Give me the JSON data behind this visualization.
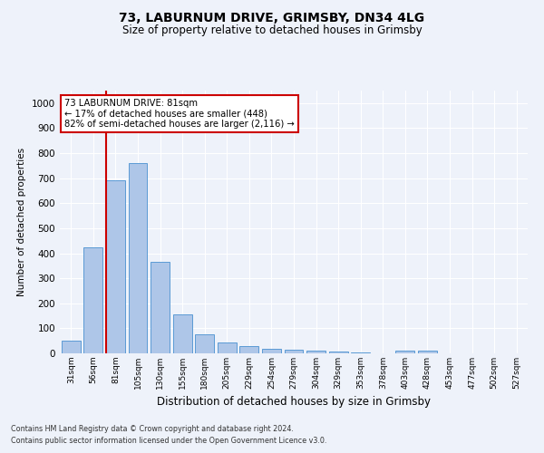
{
  "title1": "73, LABURNUM DRIVE, GRIMSBY, DN34 4LG",
  "title2": "Size of property relative to detached houses in Grimsby",
  "xlabel": "Distribution of detached houses by size in Grimsby",
  "ylabel": "Number of detached properties",
  "bar_labels": [
    "31sqm",
    "56sqm",
    "81sqm",
    "105sqm",
    "130sqm",
    "155sqm",
    "180sqm",
    "205sqm",
    "229sqm",
    "254sqm",
    "279sqm",
    "304sqm",
    "329sqm",
    "353sqm",
    "378sqm",
    "403sqm",
    "428sqm",
    "453sqm",
    "477sqm",
    "502sqm",
    "527sqm"
  ],
  "bar_values": [
    50,
    425,
    690,
    760,
    365,
    155,
    75,
    43,
    30,
    18,
    13,
    10,
    8,
    2,
    0,
    10,
    10,
    0,
    0,
    0,
    0
  ],
  "bar_color": "#aec6e8",
  "bar_edge_color": "#5b9bd5",
  "highlight_bar_index": 2,
  "highlight_color": "#cc0000",
  "ylim": [
    0,
    1050
  ],
  "yticks": [
    0,
    100,
    200,
    300,
    400,
    500,
    600,
    700,
    800,
    900,
    1000
  ],
  "annotation_title": "73 LABURNUM DRIVE: 81sqm",
  "annotation_line1": "← 17% of detached houses are smaller (448)",
  "annotation_line2": "82% of semi-detached houses are larger (2,116) →",
  "annotation_box_color": "#ffffff",
  "annotation_border_color": "#cc0000",
  "footer1": "Contains HM Land Registry data © Crown copyright and database right 2024.",
  "footer2": "Contains public sector information licensed under the Open Government Licence v3.0.",
  "bg_color": "#eef2fa",
  "grid_color": "#ffffff"
}
